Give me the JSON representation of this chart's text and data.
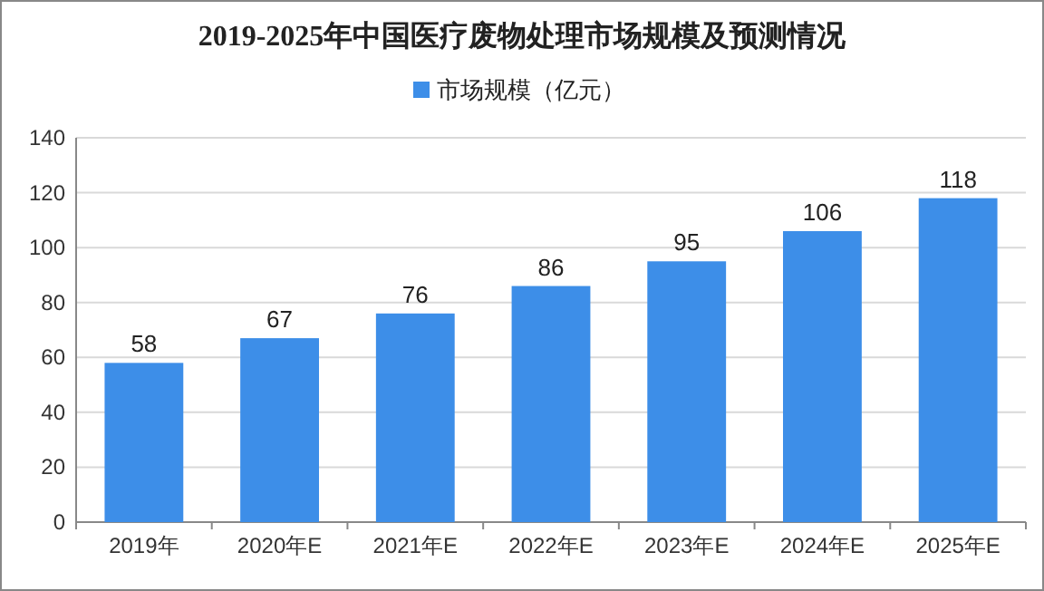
{
  "chart_data": {
    "type": "bar",
    "title": "2019-2025年中国医疗废物处理市场规模及预测情况",
    "categories": [
      "2019年",
      "2020年E",
      "2021年E",
      "2022年E",
      "2023年E",
      "2024年E",
      "2025年E"
    ],
    "series": [
      {
        "name": "市场规模（亿元）",
        "color": "#3d8ee8",
        "values": [
          58,
          67,
          76,
          86,
          95,
          106,
          118
        ]
      }
    ],
    "ylim": [
      0,
      140
    ],
    "yticks": [
      0,
      20,
      40,
      60,
      80,
      100,
      120,
      140
    ],
    "grid": "y",
    "legend": "top",
    "data_labels": true
  }
}
